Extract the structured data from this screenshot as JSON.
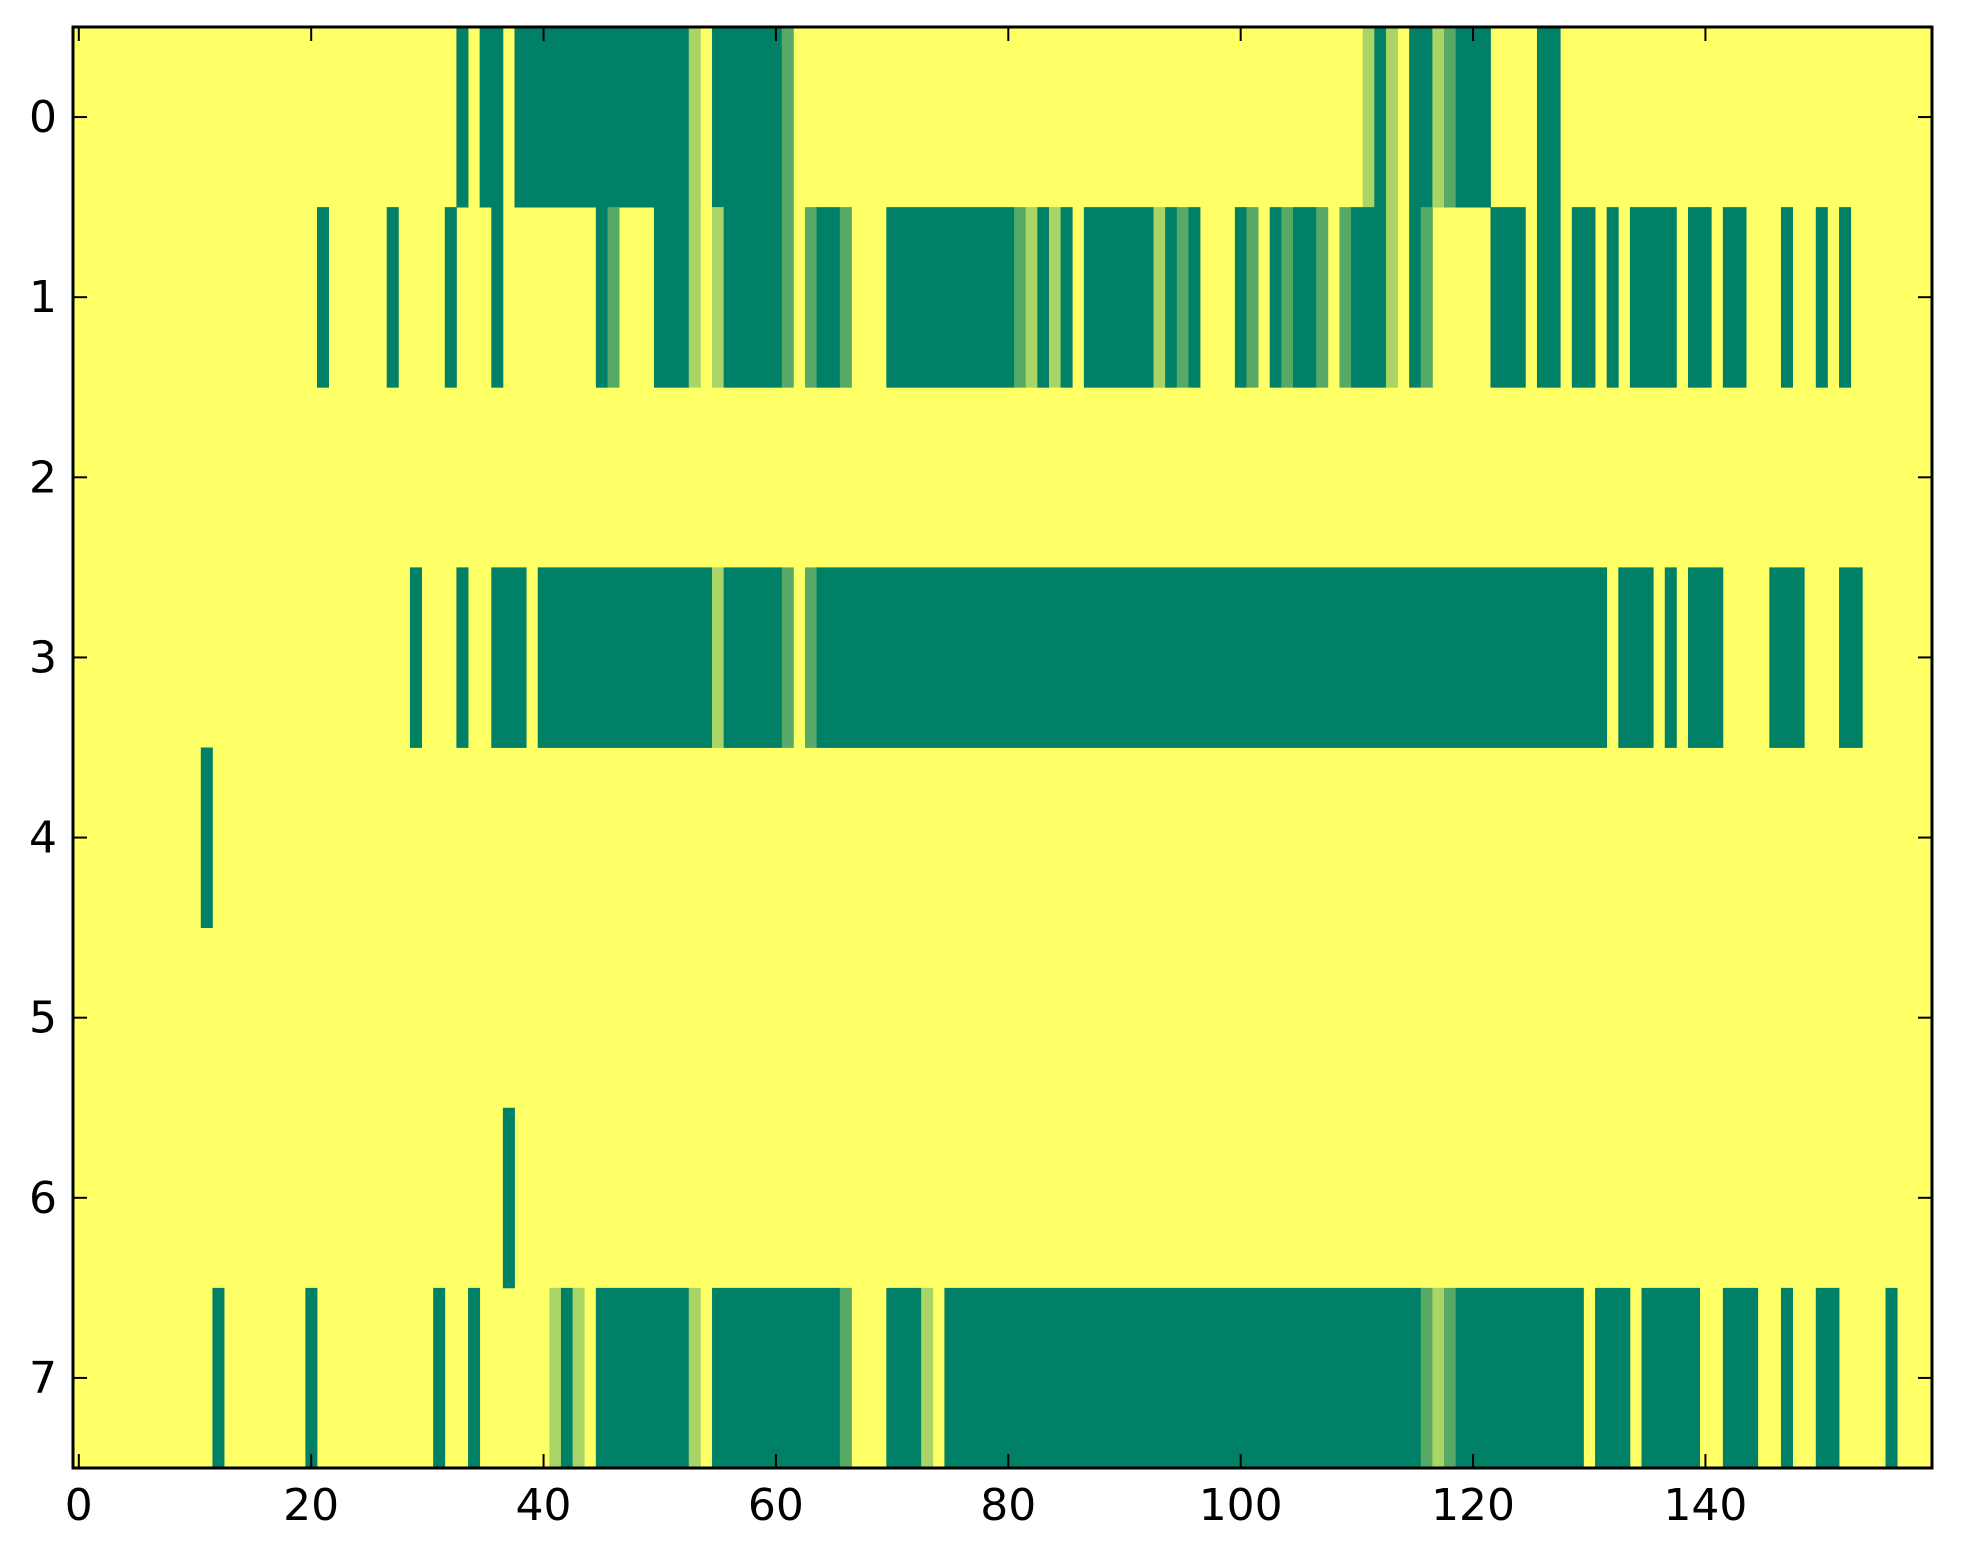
{
  "chart_data": {
    "type": "heatmap",
    "title": "",
    "xlabel": "",
    "ylabel": "",
    "xlim": [
      -0.5,
      159.5
    ],
    "ylim": [
      7.5,
      -0.5
    ],
    "grid": false,
    "colormap": "summer",
    "xticks": [
      0,
      20,
      40,
      60,
      80,
      100,
      120,
      140
    ],
    "yticks": [
      0,
      1,
      2,
      3,
      4,
      5,
      6,
      7
    ],
    "xtick_labels": [
      "0",
      "20",
      "40",
      "60",
      "80",
      "100",
      "120",
      "140"
    ],
    "ytick_labels": [
      "0",
      "1",
      "2",
      "3",
      "4",
      "5",
      "6",
      "7"
    ],
    "n_columns": 160,
    "n_rows": 8,
    "background_value": 0,
    "value_colors": {
      "0": "#ffff66",
      "0.67": "#a9d466",
      "0.83": "#56aa66",
      "1": "#008066"
    },
    "rows": [
      {
        "row": 0,
        "segments": [
          [
            33,
            33,
            1
          ],
          [
            35,
            36,
            1
          ],
          [
            38,
            52,
            1
          ],
          [
            53,
            53,
            0.67
          ],
          [
            55,
            60,
            1
          ],
          [
            61,
            61,
            0.83
          ],
          [
            111,
            111,
            0.67
          ],
          [
            112,
            112,
            1
          ],
          [
            113,
            113,
            0.67
          ],
          [
            115,
            116,
            1
          ],
          [
            117,
            117,
            0.67
          ],
          [
            118,
            118,
            0.83
          ],
          [
            119,
            121,
            1
          ],
          [
            126,
            127,
            1
          ]
        ]
      },
      {
        "row": 1,
        "segments": [
          [
            21,
            21,
            1
          ],
          [
            27,
            27,
            1
          ],
          [
            32,
            32,
            1
          ],
          [
            36,
            36,
            1
          ],
          [
            45,
            45,
            1
          ],
          [
            46,
            46,
            0.83
          ],
          [
            50,
            52,
            1
          ],
          [
            53,
            53,
            0.67
          ],
          [
            55,
            55,
            0.67
          ],
          [
            56,
            60,
            1
          ],
          [
            61,
            61,
            0.83
          ],
          [
            63,
            63,
            0.83
          ],
          [
            64,
            65,
            1
          ],
          [
            66,
            66,
            0.83
          ],
          [
            70,
            80,
            1
          ],
          [
            81,
            81,
            0.83
          ],
          [
            82,
            82,
            0.67
          ],
          [
            83,
            83,
            1
          ],
          [
            84,
            84,
            0.67
          ],
          [
            85,
            85,
            1
          ],
          [
            87,
            92,
            1
          ],
          [
            93,
            93,
            0.67
          ],
          [
            94,
            94,
            1
          ],
          [
            95,
            95,
            0.83
          ],
          [
            96,
            96,
            1
          ],
          [
            100,
            100,
            1
          ],
          [
            101,
            101,
            0.83
          ],
          [
            103,
            103,
            1
          ],
          [
            104,
            104,
            0.83
          ],
          [
            105,
            106,
            1
          ],
          [
            107,
            107,
            0.83
          ],
          [
            109,
            109,
            0.83
          ],
          [
            110,
            112,
            1
          ],
          [
            113,
            113,
            0.67
          ],
          [
            115,
            115,
            1
          ],
          [
            116,
            116,
            0.83
          ],
          [
            122,
            124,
            1
          ],
          [
            126,
            127,
            1
          ],
          [
            129,
            130,
            1
          ],
          [
            132,
            132,
            1
          ],
          [
            134,
            137,
            1
          ],
          [
            139,
            140,
            1
          ],
          [
            142,
            143,
            1
          ],
          [
            147,
            147,
            1
          ],
          [
            150,
            150,
            1
          ],
          [
            152,
            152,
            1
          ]
        ]
      },
      {
        "row": 2,
        "segments": []
      },
      {
        "row": 3,
        "segments": [
          [
            29,
            29,
            1
          ],
          [
            33,
            33,
            1
          ],
          [
            36,
            38,
            1
          ],
          [
            40,
            54,
            1
          ],
          [
            55,
            55,
            0.67
          ],
          [
            56,
            60,
            1
          ],
          [
            61,
            61,
            0.83
          ],
          [
            63,
            63,
            0.83
          ],
          [
            64,
            131,
            1
          ],
          [
            133,
            135,
            1
          ],
          [
            137,
            137,
            1
          ],
          [
            139,
            141,
            1
          ],
          [
            146,
            148,
            1
          ],
          [
            152,
            153,
            1
          ]
        ]
      },
      {
        "row": 4,
        "segments": [
          [
            11,
            11,
            1
          ]
        ]
      },
      {
        "row": 5,
        "segments": []
      },
      {
        "row": 6,
        "segments": [
          [
            37,
            37,
            1
          ]
        ]
      },
      {
        "row": 7,
        "segments": [
          [
            12,
            12,
            1
          ],
          [
            20,
            20,
            1
          ],
          [
            31,
            31,
            1
          ],
          [
            34,
            34,
            1
          ],
          [
            41,
            41,
            0.67
          ],
          [
            42,
            42,
            1
          ],
          [
            43,
            43,
            0.67
          ],
          [
            45,
            52,
            1
          ],
          [
            53,
            53,
            0.67
          ],
          [
            55,
            65,
            1
          ],
          [
            66,
            66,
            0.83
          ],
          [
            70,
            72,
            1
          ],
          [
            73,
            73,
            0.67
          ],
          [
            75,
            115,
            1
          ],
          [
            116,
            116,
            0.83
          ],
          [
            117,
            117,
            0.67
          ],
          [
            118,
            118,
            0.83
          ],
          [
            119,
            129,
            1
          ],
          [
            131,
            133,
            1
          ],
          [
            135,
            139,
            1
          ],
          [
            142,
            144,
            1
          ],
          [
            147,
            147,
            1
          ],
          [
            150,
            151,
            1
          ],
          [
            156,
            156,
            1
          ]
        ]
      }
    ]
  }
}
